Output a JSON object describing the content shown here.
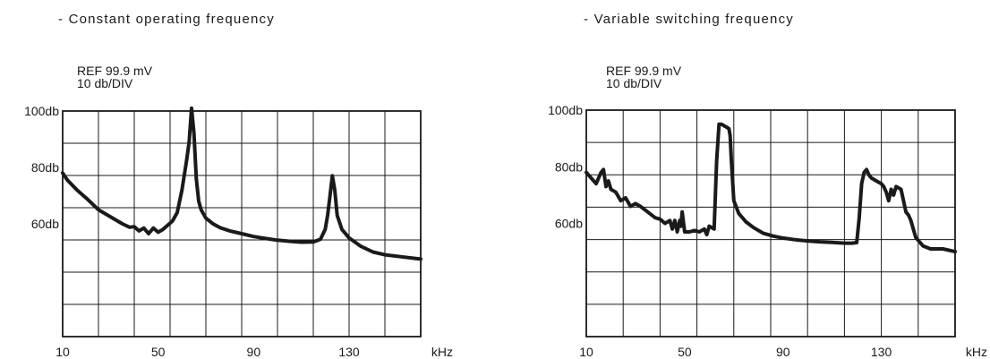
{
  "chart_data": [
    {
      "type": "line",
      "title": "- Constant  operating  frequency",
      "ref_line1": "REF  99.9 mV",
      "ref_line2": "10  db/DIV",
      "x_unit": "kHz",
      "xlim": [
        10,
        160
      ],
      "ylim": [
        20,
        100
      ],
      "x_ticks": [
        10,
        50,
        90,
        130
      ],
      "x_tick_labels": [
        "10",
        "50",
        "90",
        "130"
      ],
      "y_ticks": [
        100,
        80,
        60
      ],
      "y_tick_labels": [
        "100db",
        "80db",
        "60db"
      ],
      "grid": true,
      "series": [
        {
          "x": [
            10,
            12,
            16,
            20,
            25,
            30,
            35,
            38,
            40,
            42,
            44,
            46,
            48,
            50,
            52,
            54,
            56,
            58,
            60,
            62,
            63,
            64,
            65,
            66,
            67,
            68,
            70,
            73,
            76,
            80,
            85,
            90,
            95,
            100,
            105,
            110,
            115,
            118,
            120,
            121,
            122,
            123,
            124,
            125,
            127,
            130,
            135,
            140,
            145,
            150,
            155,
            160
          ],
          "y": [
            78,
            75.5,
            72,
            69,
            65,
            62.5,
            60,
            58.8,
            59,
            57.5,
            58.5,
            56.5,
            58.5,
            57,
            58,
            59.5,
            61,
            64,
            72,
            83,
            89,
            101,
            92,
            76,
            68,
            65,
            62,
            60,
            58.6,
            57.5,
            56.5,
            55.5,
            54.8,
            54.2,
            53.8,
            53.5,
            53.6,
            54.5,
            58,
            63,
            70,
            77,
            72,
            63,
            58,
            55,
            52,
            50,
            49,
            48.5,
            48,
            47.5
          ]
        }
      ]
    },
    {
      "type": "line",
      "title": "- Variable  switching  frequency",
      "ref_line1": "REF  99.9 mV",
      "ref_line2": "10  db/DIV",
      "x_unit": "kHz",
      "xlim": [
        10,
        160
      ],
      "ylim": [
        20,
        100
      ],
      "x_ticks": [
        10,
        50,
        90,
        130
      ],
      "x_tick_labels": [
        "10",
        "50",
        "90",
        "130"
      ],
      "y_ticks": [
        100,
        80,
        60
      ],
      "y_tick_labels": [
        "100db",
        "80db",
        "60db"
      ],
      "grid": true,
      "series": [
        {
          "x": [
            10,
            12,
            14,
            16,
            17,
            18,
            19,
            20,
            22,
            24,
            26,
            28,
            30,
            32,
            35,
            38,
            40,
            42,
            44,
            45,
            46,
            47,
            48,
            48.5,
            49,
            50,
            52,
            54,
            56,
            58,
            59,
            60,
            61,
            62,
            63,
            64,
            65,
            66,
            67,
            68,
            68.5,
            69,
            70,
            72,
            75,
            78,
            82,
            86,
            90,
            95,
            100,
            105,
            110,
            115,
            118,
            120,
            121,
            122,
            123,
            124,
            125,
            126,
            128,
            130,
            131,
            132,
            133,
            134,
            135,
            136,
            138,
            140,
            141,
            142,
            143,
            144,
            145,
            147,
            150,
            155,
            160
          ],
          "y": [
            78,
            76,
            74,
            78,
            79,
            73,
            75,
            72,
            71,
            68,
            69,
            66,
            67,
            66,
            64,
            62,
            61.5,
            60,
            61,
            58,
            61,
            57,
            61,
            59,
            64,
            57,
            57,
            57.5,
            57,
            58,
            56,
            59,
            58.5,
            58,
            82,
            95,
            95,
            94.5,
            94,
            93.5,
            91,
            82,
            68,
            63.5,
            60.5,
            58.5,
            56.5,
            55.5,
            54.8,
            54.2,
            53.8,
            53.5,
            53.3,
            53,
            53,
            53.2,
            62,
            74,
            78,
            79,
            77,
            76,
            75,
            74,
            73,
            71,
            68,
            72,
            70,
            73,
            72,
            64,
            63,
            61,
            58,
            55,
            54,
            52,
            51,
            51,
            50
          ]
        }
      ]
    }
  ]
}
